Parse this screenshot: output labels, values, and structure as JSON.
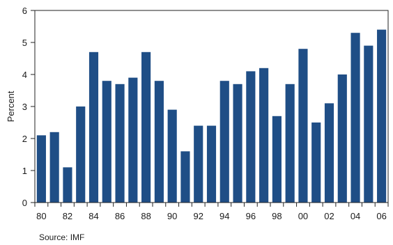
{
  "chart_data": {
    "type": "bar",
    "title": "",
    "xlabel": "",
    "ylabel": "Percent",
    "ylim": [
      0,
      6
    ],
    "yticks": [
      0,
      1,
      2,
      3,
      4,
      5,
      6
    ],
    "grid": false,
    "bar_color": "#1f4e86",
    "categories": [
      "1980",
      "1981",
      "1982",
      "1983",
      "1984",
      "1985",
      "1986",
      "1987",
      "1988",
      "1989",
      "1990",
      "1991",
      "1992",
      "1993",
      "1994",
      "1995",
      "1996",
      "1997",
      "1998",
      "1999",
      "2000",
      "2001",
      "2002",
      "2003",
      "2004",
      "2005",
      "2006"
    ],
    "xtick_labels": [
      "80",
      "",
      "82",
      "",
      "84",
      "",
      "86",
      "",
      "88",
      "",
      "90",
      "",
      "92",
      "",
      "94",
      "",
      "96",
      "",
      "98",
      "",
      "00",
      "",
      "02",
      "",
      "04",
      "",
      "06"
    ],
    "values": [
      2.1,
      2.2,
      1.1,
      3.0,
      4.7,
      3.8,
      3.7,
      3.9,
      4.7,
      3.8,
      2.9,
      1.6,
      2.4,
      2.4,
      3.8,
      3.7,
      4.1,
      4.2,
      2.7,
      3.7,
      4.8,
      2.5,
      3.1,
      4.0,
      5.3,
      4.9,
      5.4
    ]
  },
  "footer": {
    "source": "Source: IMF"
  }
}
